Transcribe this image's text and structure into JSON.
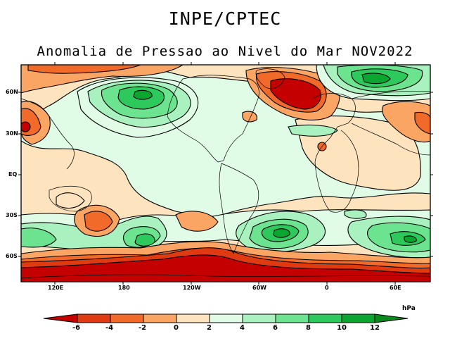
{
  "header": {
    "institution": "INPE/CPTEC",
    "subtitle": "Anomalia de Pressao ao Nivel do Mar NOV2022"
  },
  "map": {
    "lat_labels": [
      "60N",
      "30N",
      "EQ",
      "30S",
      "60S"
    ],
    "lon_labels": [
      "120E",
      "180",
      "120W",
      "60W",
      "0",
      "60E"
    ],
    "background_class_color": "#e0fbe6"
  },
  "colorbar": {
    "units": "hPa",
    "tick_labels": [
      "-6",
      "-4",
      "-2",
      "0",
      "2",
      "4",
      "6",
      "8",
      "10",
      "12"
    ],
    "colors": [
      "#c50000",
      "#e03a10",
      "#f26a2a",
      "#fba565",
      "#fee3bf",
      "#e0fbe6",
      "#a9f2bf",
      "#6be38f",
      "#2ec95c",
      "#0aa630",
      "#0a8a1c"
    ]
  }
}
